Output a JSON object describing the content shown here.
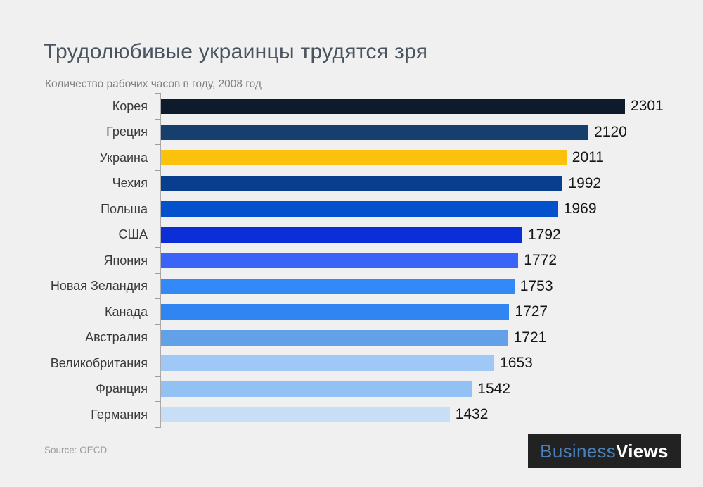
{
  "page": {
    "background_color": "#f0f0f1"
  },
  "header": {
    "title": "Трудолюбивые украинцы трудятся зря",
    "subtitle": "Количество рабочих часов в году, 2008 год"
  },
  "chart_data": {
    "type": "bar",
    "orientation": "horizontal",
    "title": "Трудолюбивые украинцы трудятся зря",
    "subtitle": "Количество рабочих часов в году, 2008 год",
    "categories": [
      "Корея",
      "Греция",
      "Украина",
      "Чехия",
      "Польша",
      "США",
      "Япония",
      "Новая Зеландия",
      "Канада",
      "Австралия",
      "Великобритания",
      "Франция",
      "Германия"
    ],
    "values": [
      2301,
      2120,
      2011,
      1992,
      1969,
      1792,
      1772,
      1753,
      1727,
      1721,
      1653,
      1542,
      1432
    ],
    "bar_colors": [
      "#0e1b2c",
      "#173f6e",
      "#fcc10c",
      "#093d8e",
      "#0551cd",
      "#0c2ed6",
      "#3a63f7",
      "#3389f7",
      "#3085f2",
      "#62a0e8",
      "#9fc8f7",
      "#93c1f3",
      "#c8def7"
    ],
    "highlight": {
      "category": "Украина",
      "color": "#fcc10c"
    },
    "value_labels": true,
    "xlim": [
      0,
      2301
    ],
    "axis": {
      "line_color": "#ababab",
      "tick_style": "category-boundaries",
      "gridlines": false
    },
    "legend": "none"
  },
  "footer": {
    "source": "Source: OECD",
    "logo": {
      "part1": "Business",
      "part2": "Views",
      "part1_color": "#4a80b8",
      "part2_color": "#ffffff",
      "background": "#222222"
    }
  }
}
